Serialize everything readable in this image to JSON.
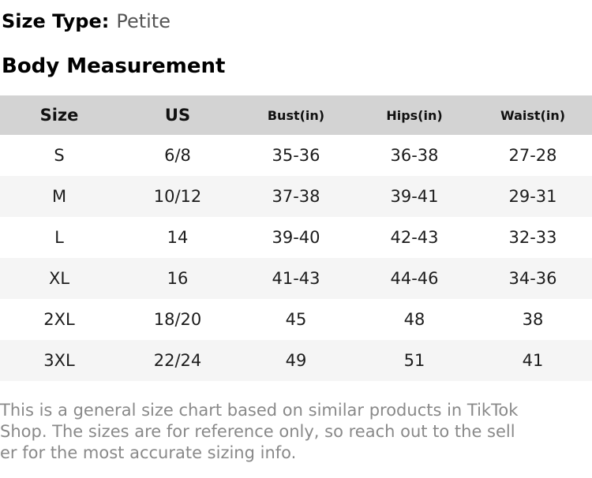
{
  "header": {
    "size_type_label": "Size Type:",
    "size_type_value": "Petite",
    "section_title": "Body Measurement"
  },
  "table": {
    "headers": [
      "Size",
      "US",
      "Bust(in)",
      "Hips(in)",
      "Waist(in)"
    ],
    "rows": [
      [
        "S",
        "6/8",
        "35-36",
        "36-38",
        "27-28"
      ],
      [
        "M",
        "10/12",
        "37-38",
        "39-41",
        "29-31"
      ],
      [
        "L",
        "14",
        "39-40",
        "42-43",
        "32-33"
      ],
      [
        "XL",
        "16",
        "41-43",
        "44-46",
        "34-36"
      ],
      [
        "2XL",
        "18/20",
        "45",
        "48",
        "38"
      ],
      [
        "3XL",
        "22/24",
        "49",
        "51",
        "41"
      ]
    ]
  },
  "footer": {
    "full_text": "This is a general size chart based on similar products in TikTok Shop. The sizes are for reference only, so reach out to the seller for the most accurate sizing info.",
    "lines": [
      "This is a general size chart based on similar products in TikTok",
      "Shop. The sizes are for reference only, so reach out to the sell",
      "er for the most accurate sizing info."
    ]
  },
  "colors": {
    "table_header_bg": "#d3d3d3",
    "row_alt_bg": "#f5f5f5",
    "row_bg": "#ffffff",
    "primary_text": "#000000",
    "cell_text": "#1c1c1c",
    "size_type_value_text": "#555555",
    "footer_text": "#898989"
  }
}
